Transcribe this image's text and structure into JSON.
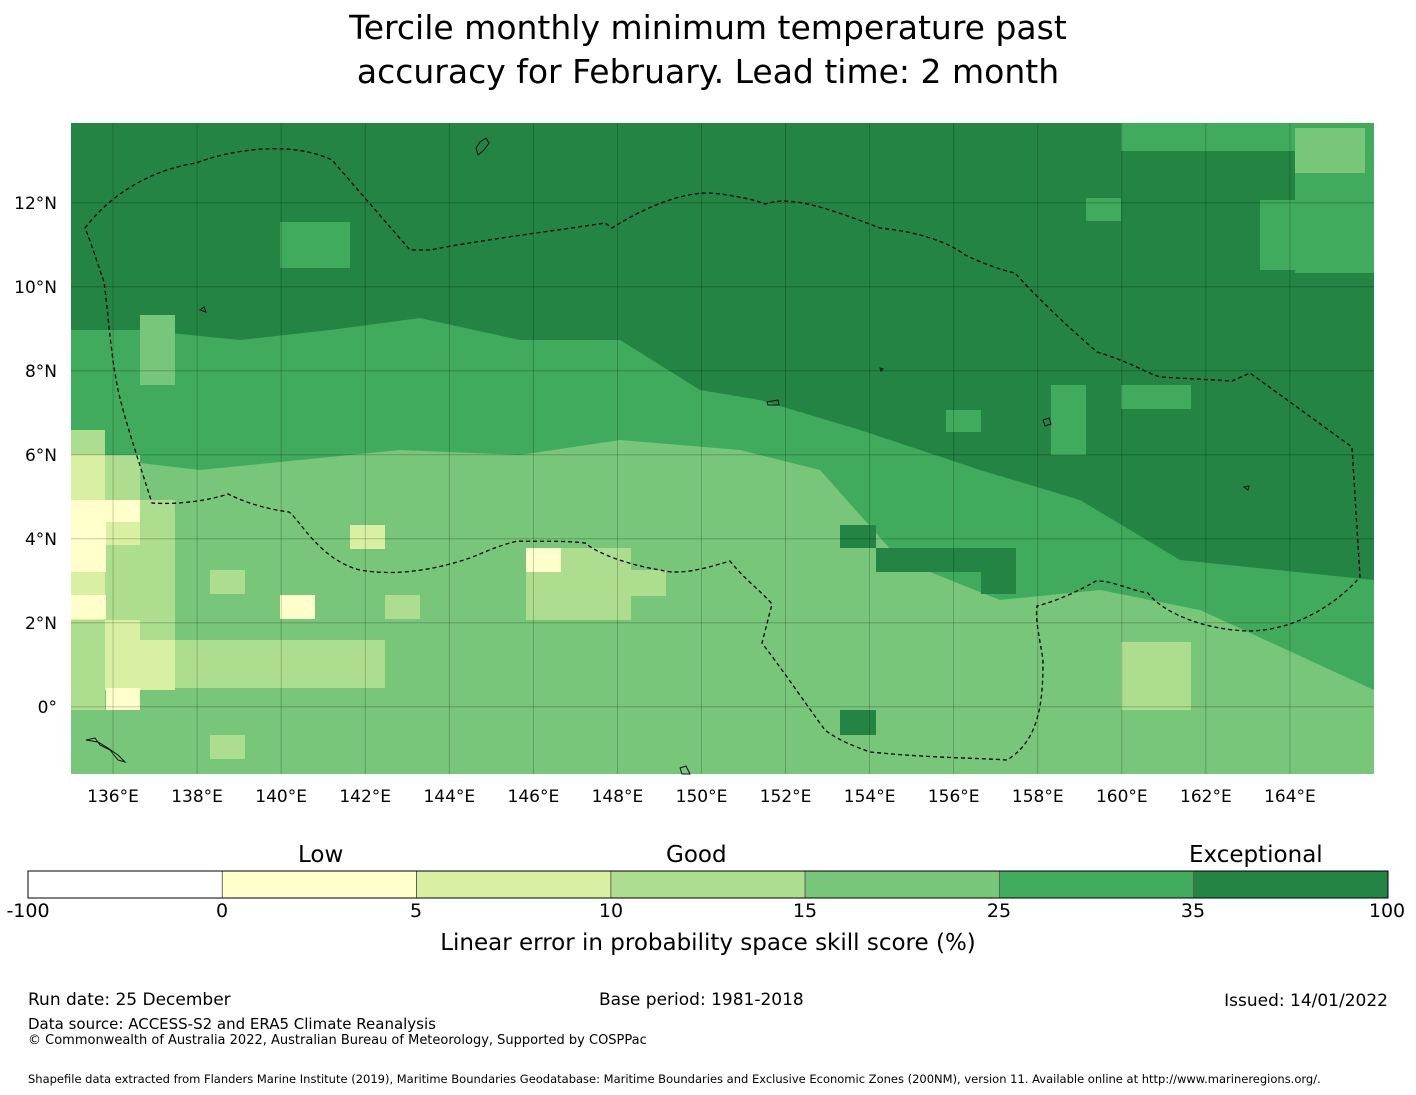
{
  "title": {
    "line1": "Tercile monthly minimum temperature past",
    "line2": "accuracy for February. Lead time: 2 month"
  },
  "map": {
    "lon_range": [
      135,
      166
    ],
    "lat_range": [
      -1.6,
      13.9
    ],
    "lon_ticks": [
      "136°E",
      "138°E",
      "140°E",
      "142°E",
      "144°E",
      "146°E",
      "148°E",
      "150°E",
      "152°E",
      "154°E",
      "156°E",
      "158°E",
      "160°E",
      "162°E",
      "164°E"
    ],
    "lat_ticks": [
      "12°N",
      "10°N",
      "8°N",
      "6°N",
      "4°N",
      "2°N",
      "0°"
    ],
    "regions": [
      "exceptional-north",
      "good-central",
      "low-west"
    ]
  },
  "legend": {
    "categories": [
      "Low",
      "Good",
      "Exceptional"
    ],
    "boundaries": [
      "-100",
      "0",
      "5",
      "10",
      "15",
      "25",
      "35",
      "100"
    ],
    "colors": [
      "#ffffff",
      "#ffffcc",
      "#d9f0a3",
      "#addd8e",
      "#78c679",
      "#41ab5d",
      "#238443"
    ],
    "axis_label": "Linear error in probability space skill score (%)"
  },
  "footer": {
    "run_date": "Run date: 25 December",
    "base_period": "Base period: 1981-2018",
    "issued": "Issued: 14/01/2022",
    "data_source": "Data source: ACCESS-S2 and ERA5 Climate Reanalysis",
    "copyright": "© Commonwealth of Australia 2022, Australian Bureau of Meteorology, Supported by COSPPac",
    "shapefile": "Shapefile data extracted from Flanders Marine Institute (2019), Maritime Boundaries Geodatabase: Maritime Boundaries and Exclusive Economic Zones (200NM), version 11. Available online at http://www.marineregions.org/."
  }
}
